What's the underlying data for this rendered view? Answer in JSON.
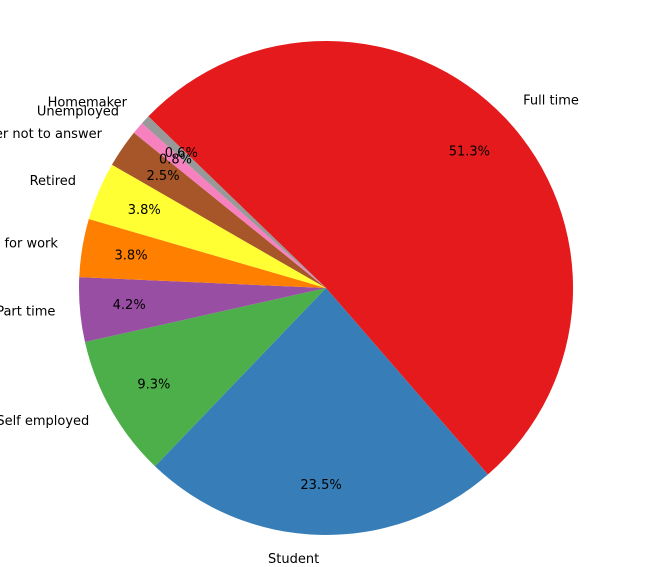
{
  "chart_data": {
    "type": "pie",
    "slices": [
      {
        "label": "Full time",
        "value": 51.3,
        "pct_label": "51.3%",
        "color": "#e41a1c"
      },
      {
        "label": "Student",
        "value": 23.5,
        "pct_label": "23.5%",
        "color": "#377eb8"
      },
      {
        "label": "Self employed",
        "value": 9.3,
        "pct_label": "9.3%",
        "color": "#4daf4a"
      },
      {
        "label": "Part time",
        "value": 4.2,
        "pct_label": "4.2%",
        "color": "#984ea3"
      },
      {
        "label": "Looking for work",
        "value": 3.8,
        "pct_label": "3.8%",
        "color": "#ff7f00"
      },
      {
        "label": "Retired",
        "value": 3.8,
        "pct_label": "3.8%",
        "color": "#ffff33"
      },
      {
        "label": "Prefer not to answer",
        "value": 2.5,
        "pct_label": "2.5%",
        "color": "#a65628"
      },
      {
        "label": "Unemployed",
        "value": 0.8,
        "pct_label": "0.8%",
        "color": "#f781bf"
      },
      {
        "label": "Homemaker",
        "value": 0.6,
        "pct_label": "0.6%",
        "color": "#999999"
      }
    ],
    "start_angle_deg": 136,
    "direction": "clockwise",
    "legend": "none"
  }
}
